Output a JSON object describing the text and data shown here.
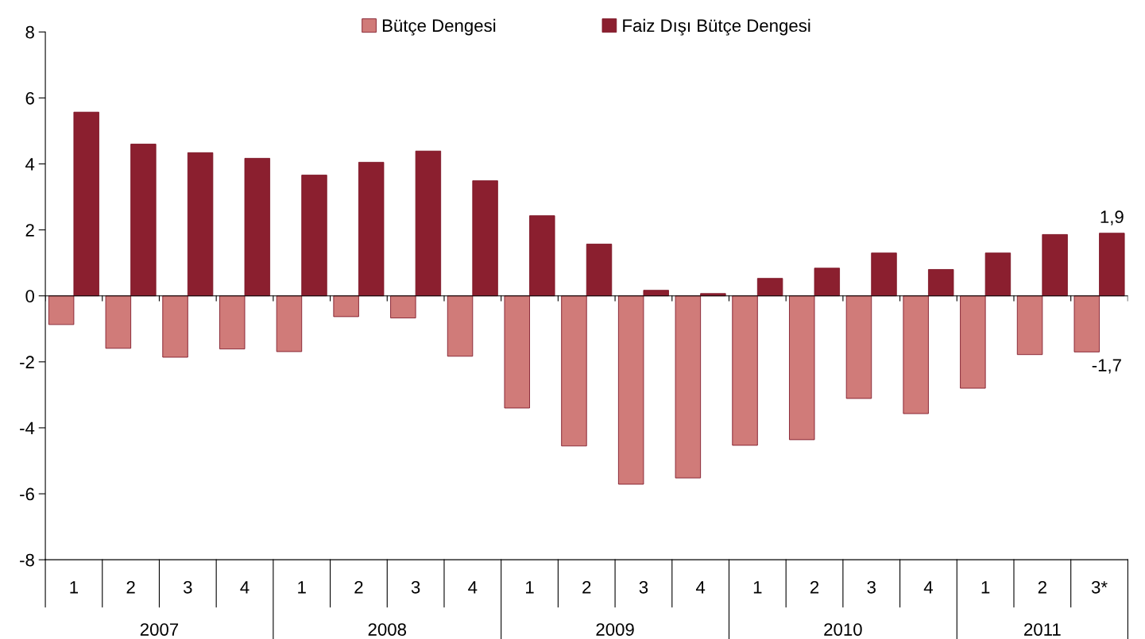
{
  "chart_data": {
    "type": "bar",
    "categories": [
      "1",
      "2",
      "3",
      "4",
      "1",
      "2",
      "3",
      "4",
      "1",
      "2",
      "3",
      "4",
      "1",
      "2",
      "3",
      "4",
      "1",
      "2",
      "3*"
    ],
    "series": [
      {
        "name": "Bütçe Dengesi",
        "color": "#d07b79",
        "values": [
          -0.87,
          -1.59,
          -1.86,
          -1.61,
          -1.69,
          -0.63,
          -0.67,
          -1.83,
          -3.4,
          -4.55,
          -5.71,
          -5.52,
          -4.53,
          -4.36,
          -3.11,
          -3.57,
          -2.8,
          -1.78,
          -1.7
        ],
        "value_labels": [
          null,
          null,
          null,
          null,
          null,
          null,
          null,
          null,
          null,
          null,
          null,
          null,
          null,
          null,
          null,
          null,
          null,
          null,
          "-1,7"
        ]
      },
      {
        "name": "Faiz Dışı Bütçe Dengesi",
        "color": "#8b1f2f",
        "values": [
          5.57,
          4.6,
          4.34,
          4.17,
          3.66,
          4.05,
          4.39,
          3.49,
          2.43,
          1.57,
          0.17,
          0.07,
          0.53,
          0.84,
          1.3,
          0.8,
          1.3,
          1.86,
          1.9
        ],
        "value_labels": [
          null,
          null,
          null,
          null,
          null,
          null,
          null,
          null,
          null,
          null,
          null,
          null,
          null,
          null,
          null,
          null,
          null,
          null,
          "1,9"
        ]
      }
    ],
    "annotations": [
      "2007",
      "2008",
      "2009",
      "2010",
      "2011"
    ],
    "ylim": [
      -8,
      8
    ],
    "yticks": [
      -8,
      -6,
      -4,
      -2,
      0,
      2,
      4,
      6,
      8
    ],
    "grid": false,
    "ref_lines": [
      {
        "axis": "y",
        "value": 0,
        "color": "#000000"
      }
    ],
    "legend": "top"
  }
}
